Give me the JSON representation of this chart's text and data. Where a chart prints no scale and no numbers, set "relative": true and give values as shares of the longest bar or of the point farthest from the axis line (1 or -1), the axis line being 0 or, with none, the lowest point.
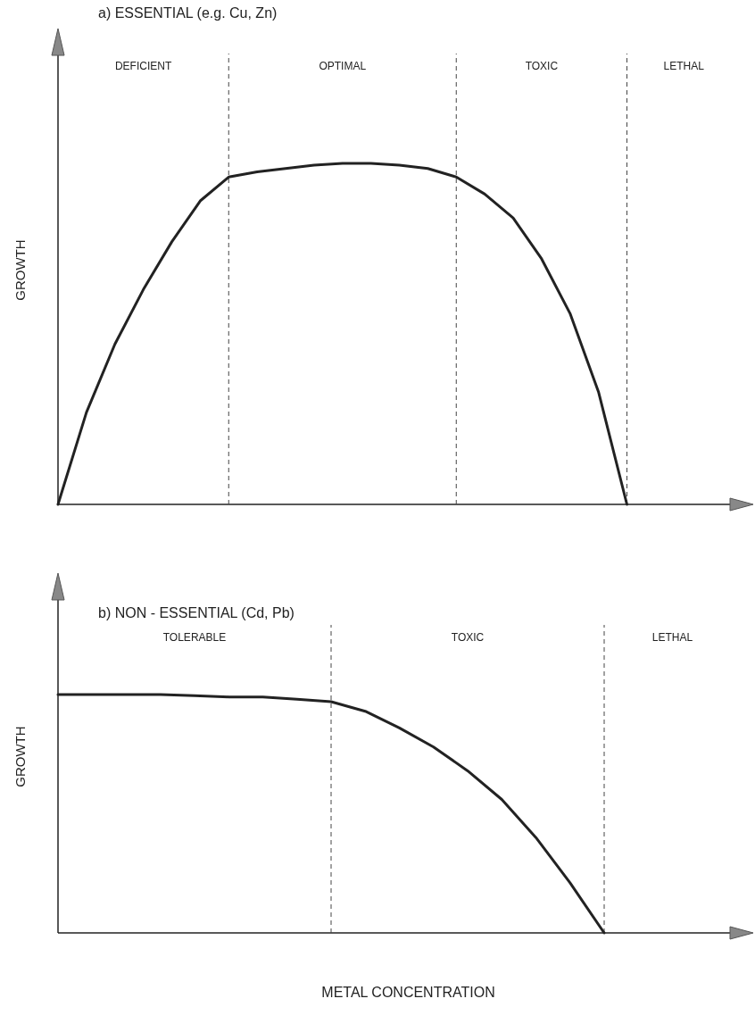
{
  "chart_data": [
    {
      "type": "line",
      "title": "a) ESSENTIAL (e.g. Cu, Zn)",
      "ylabel": "GROWTH",
      "relative": true,
      "marker": "none",
      "line_style": "solid",
      "categories": [
        null,
        null,
        null,
        null,
        null,
        null,
        null,
        null,
        null,
        null,
        null,
        null,
        null,
        null,
        null,
        null,
        null,
        null,
        null,
        null,
        null,
        null,
        null,
        null,
        null
      ],
      "series": [
        {
          "color": "#222222",
          "values": [
            0,
            0.27,
            0.47,
            0.63,
            0.77,
            0.89,
            0.96,
            0.975,
            0.985,
            0.995,
            1,
            1,
            0.995,
            0.985,
            0.96,
            0.91,
            0.84,
            0.72,
            0.56,
            0.33,
            0,
            null,
            null,
            null,
            null
          ]
        }
      ],
      "grid": "x",
      "annotations": [
        "DEFICIENT",
        "OPTIMAL",
        "TOXIC",
        "LETHAL"
      ]
    },
    {
      "type": "line",
      "title": "b) NON - ESSENTIAL (Cd, Pb)",
      "xlabel": "METAL CONCENTRATION",
      "ylabel": "GROWTH",
      "relative": true,
      "marker": "none",
      "line_style": "solid",
      "categories": [
        null,
        null,
        null,
        null,
        null,
        null,
        null,
        null,
        null,
        null,
        null,
        null,
        null,
        null,
        null,
        null,
        null,
        null,
        null,
        null,
        null
      ],
      "series": [
        {
          "color": "#222222",
          "values": [
            1,
            1,
            1,
            1,
            0.995,
            0.99,
            0.99,
            0.98,
            0.97,
            0.93,
            0.86,
            0.78,
            0.68,
            0.56,
            0.4,
            0.21,
            0,
            null,
            null,
            null,
            null
          ]
        }
      ],
      "grid": "x",
      "annotations": [
        "TOLERABLE",
        "TOXIC",
        "LETHAL"
      ]
    }
  ]
}
